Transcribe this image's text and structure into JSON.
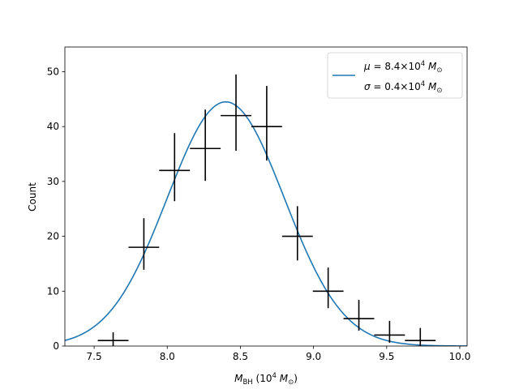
{
  "chart_data": {
    "type": "scatter",
    "title": "",
    "xlabel": "M_BH (10^4 M_⊙)",
    "ylabel": "Count",
    "xlim": [
      7.3,
      10.05
    ],
    "ylim": [
      0,
      54.5
    ],
    "xticks": [
      7.5,
      8.0,
      8.5,
      9.0,
      9.5,
      10.0
    ],
    "xtick_labels": [
      "7.5",
      "8.0",
      "8.5",
      "9.0",
      "9.5",
      "10.0"
    ],
    "yticks": [
      0,
      10,
      20,
      30,
      40,
      50
    ],
    "ytick_labels": [
      "0",
      "10",
      "20",
      "30",
      "40",
      "50"
    ],
    "bin_half_width": 0.105,
    "series": [
      {
        "name": "histogram counts",
        "style": "errorbar",
        "color": "#000000",
        "points": [
          {
            "x": 7.63,
            "y": 1,
            "yerr_low": 1.0,
            "yerr_high": 1.5
          },
          {
            "x": 7.84,
            "y": 18,
            "yerr_low": 4.1,
            "yerr_high": 5.3
          },
          {
            "x": 8.05,
            "y": 32,
            "yerr_low": 5.6,
            "yerr_high": 6.8
          },
          {
            "x": 8.26,
            "y": 36,
            "yerr_low": 5.9,
            "yerr_high": 7.1
          },
          {
            "x": 8.47,
            "y": 42,
            "yerr_low": 6.4,
            "yerr_high": 7.5
          },
          {
            "x": 8.68,
            "y": 40,
            "yerr_low": 6.2,
            "yerr_high": 7.4
          },
          {
            "x": 8.89,
            "y": 20,
            "yerr_low": 4.4,
            "yerr_high": 5.5
          },
          {
            "x": 9.1,
            "y": 10,
            "yerr_low": 3.1,
            "yerr_high": 4.3
          },
          {
            "x": 9.31,
            "y": 5,
            "yerr_low": 2.2,
            "yerr_high": 3.4
          },
          {
            "x": 9.52,
            "y": 2,
            "yerr_low": 1.4,
            "yerr_high": 2.6
          },
          {
            "x": 9.73,
            "y": 1,
            "yerr_low": 1.0,
            "yerr_high": 2.3
          }
        ]
      },
      {
        "name": "Gaussian fit",
        "style": "line",
        "color": "#1f77b4",
        "mu": 8.4,
        "sigma": 0.4,
        "amplitude": 44.5,
        "x_range": [
          7.3,
          10.05
        ]
      }
    ],
    "legend": {
      "position": "top-right",
      "lines": [
        "μ = 8.4×10⁴ M⊙",
        "σ = 0.4×10⁴ M⊙"
      ]
    }
  }
}
